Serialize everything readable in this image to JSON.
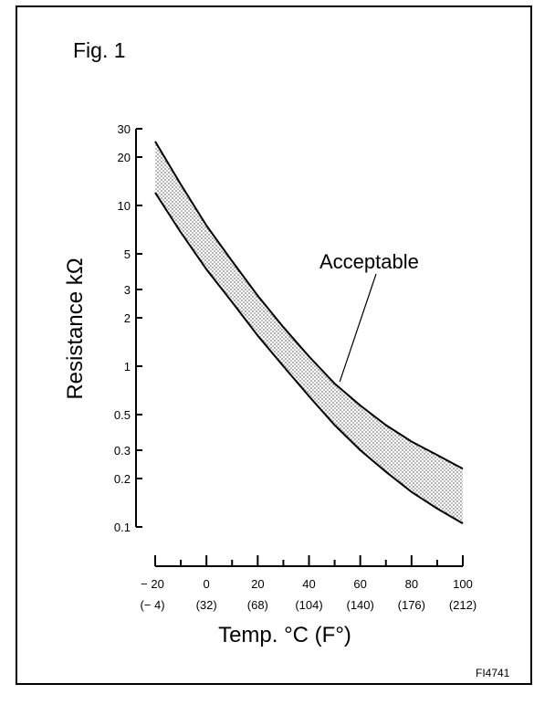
{
  "figure_label": "Fig. 1",
  "figure_code": "FI4741",
  "chart_data": {
    "type": "area",
    "xlabel": "Temp. °C (F°)",
    "ylabel": "Resistance kΩ",
    "x_scale": "linear",
    "y_scale": "log",
    "xlim": [
      -20,
      100
    ],
    "ylim": [
      0.1,
      30
    ],
    "x_ticks": [
      -20,
      0,
      20,
      40,
      60,
      80,
      100
    ],
    "x_tick_labels": [
      "− 20",
      "0",
      "20",
      "40",
      "60",
      "80",
      "100"
    ],
    "x_tick_sublabels": [
      "(− 4)",
      "(32)",
      "(68)",
      "(104)",
      "(140)",
      "(176)",
      "(212)"
    ],
    "y_ticks": [
      0.1,
      0.2,
      0.3,
      0.5,
      1,
      2,
      3,
      5,
      10,
      20,
      30
    ],
    "y_tick_labels": [
      "0.1",
      "0.2",
      "0.3",
      "0.5",
      "1",
      "2",
      "3",
      "5",
      "10",
      "20",
      "30"
    ],
    "band": {
      "x": [
        -20,
        -10,
        0,
        10,
        20,
        30,
        40,
        50,
        60,
        70,
        80,
        90,
        100
      ],
      "upper": [
        25,
        13.5,
        7.5,
        4.5,
        2.75,
        1.75,
        1.15,
        0.78,
        0.57,
        0.43,
        0.34,
        0.28,
        0.23
      ],
      "lower": [
        12,
        6.8,
        4,
        2.5,
        1.55,
        1.0,
        0.65,
        0.43,
        0.3,
        0.22,
        0.165,
        0.13,
        0.105
      ]
    },
    "annotation": {
      "text": "Acceptable",
      "x": 52,
      "y": 0.8
    },
    "grid": false
  }
}
